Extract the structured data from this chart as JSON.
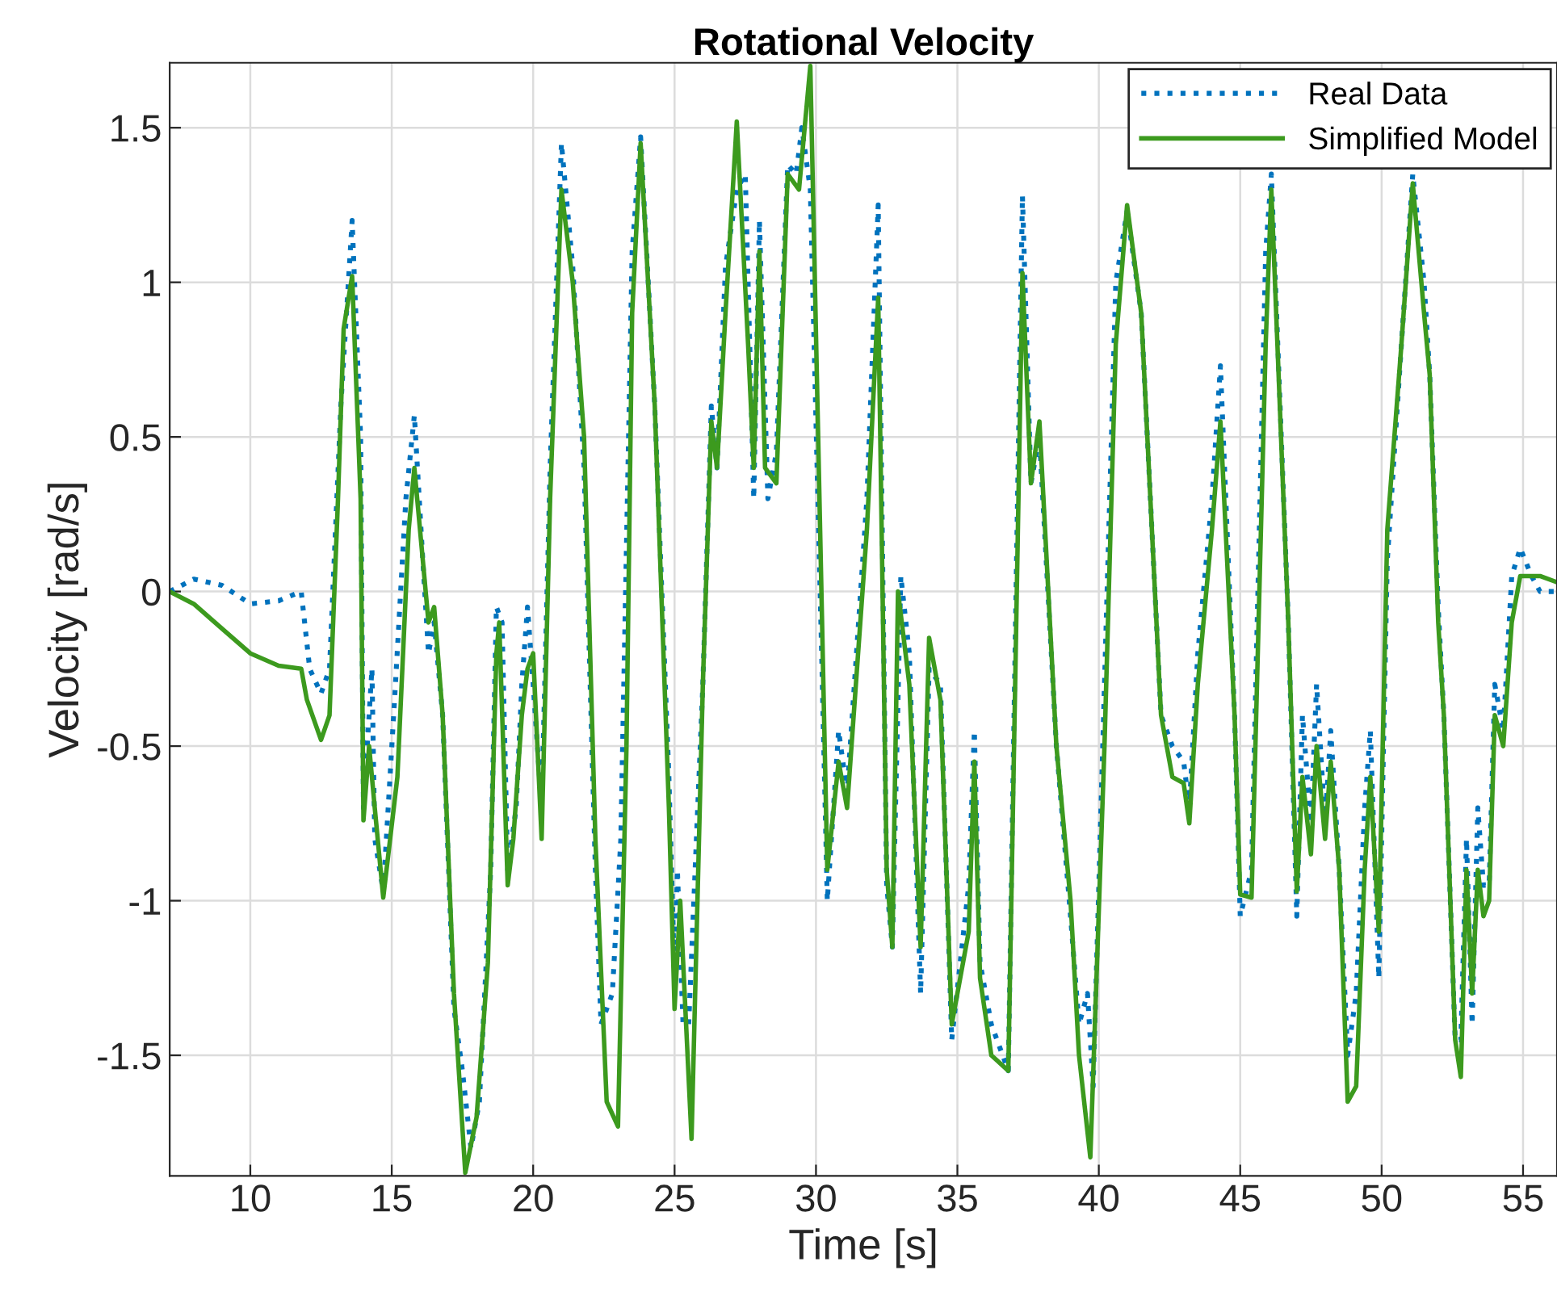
{
  "chart_data": {
    "type": "line",
    "title": "Rotational Velocity",
    "xlabel": "Time [s]",
    "ylabel": "Velocity [rad/s]",
    "xlim": [
      7.15,
      56.2
    ],
    "ylim": [
      -1.89,
      1.71
    ],
    "xticks": [
      10,
      15,
      20,
      25,
      30,
      35,
      40,
      45,
      50,
      55
    ],
    "yticks": [
      -1.5,
      -1,
      -0.5,
      0,
      0.5,
      1,
      1.5
    ],
    "grid": true,
    "legend": "top right",
    "series": [
      {
        "name": "Real Data",
        "color": "#0072bd",
        "line_style": "dotted",
        "x": [
          7.15,
          8,
          9,
          10,
          11,
          11.8,
          12.1,
          12.5,
          12.8,
          13.2,
          13.6,
          13.9,
          14.0,
          14.3,
          14.4,
          14.7,
          15.1,
          15.5,
          15.8,
          16.1,
          16.3,
          16.5,
          16.8,
          17.2,
          17.5,
          17.8,
          18.1,
          18.5,
          18.7,
          18.9,
          19.1,
          19.4,
          19.6,
          19.8,
          20.0,
          20.3,
          20.6,
          21.0,
          21.4,
          21.8,
          22.2,
          22.4,
          22.8,
          23.1,
          23.5,
          23.8,
          24.3,
          24.8,
          25.0,
          25.1,
          25.3,
          25.5,
          26.0,
          26.3,
          26.5,
          26.8,
          27.2,
          27.5,
          27.8,
          28.0,
          28.3,
          28.6,
          29.0,
          29.3,
          29.5,
          29.8,
          30.2,
          30.4,
          30.8,
          31.1,
          31.8,
          32.2,
          32.5,
          32.7,
          33.0,
          33.3,
          33.7,
          34.0,
          34.4,
          34.8,
          35.4,
          35.6,
          35.8,
          36.2,
          36.8,
          37.3,
          37.6,
          37.9,
          38.5,
          39.0,
          39.3,
          39.6,
          39.8,
          40.2,
          40.6,
          41.0,
          41.5,
          42.2,
          42.6,
          43.0,
          43.2,
          43.5,
          44.0,
          44.3,
          44.8,
          45.0,
          45.4,
          45.9,
          46.1,
          46.7,
          47.0,
          47.2,
          47.5,
          47.7,
          48.0,
          48.2,
          48.5,
          48.8,
          49.1,
          49.4,
          49.6,
          49.9,
          50.2,
          50.7,
          51.1,
          51.5,
          51.7,
          52.0,
          52.2,
          52.6,
          52.8,
          53.0,
          53.2,
          53.4,
          53.6,
          53.8,
          54.0,
          54.3,
          54.6,
          54.9,
          55.3,
          55.6,
          56.2
        ],
        "values": [
          0,
          0.04,
          0.02,
          -0.04,
          -0.03,
          0.0,
          -0.25,
          -0.33,
          -0.25,
          0.6,
          1.2,
          0.5,
          -0.7,
          -0.25,
          -0.8,
          -0.97,
          -0.35,
          0.3,
          0.57,
          0.1,
          -0.2,
          -0.1,
          -0.4,
          -1.35,
          -1.55,
          -1.8,
          -1.65,
          -0.9,
          -0.05,
          -0.1,
          -0.9,
          -0.7,
          -0.3,
          -0.05,
          -0.3,
          -0.7,
          0.4,
          1.45,
          1.05,
          0.4,
          -0.9,
          -1.4,
          -1.3,
          -0.8,
          1.1,
          1.47,
          0.6,
          -0.6,
          -1.25,
          -0.9,
          -1.4,
          -1.4,
          -0.3,
          0.6,
          0.4,
          1.05,
          1.3,
          1.35,
          0.3,
          1.2,
          0.3,
          0.45,
          1.38,
          1.35,
          1.5,
          1.3,
          -0.2,
          -1.0,
          -0.45,
          -0.65,
          0.3,
          1.25,
          -0.95,
          -1.15,
          0.05,
          -0.2,
          -1.3,
          -0.25,
          -0.3,
          -1.45,
          -0.95,
          -0.45,
          -1.2,
          -1.4,
          -1.55,
          1.28,
          0.35,
          0.5,
          -0.5,
          -1.05,
          -1.4,
          -1.3,
          -1.6,
          -0.3,
          1.0,
          1.23,
          0.9,
          -0.4,
          -0.5,
          -0.55,
          -0.7,
          -0.2,
          0.3,
          0.73,
          -0.4,
          -1.05,
          -0.9,
          1.1,
          1.35,
          -0.1,
          -1.05,
          -0.4,
          -0.75,
          -0.3,
          -0.75,
          -0.45,
          -0.9,
          -1.5,
          -1.3,
          -0.7,
          -0.45,
          -1.25,
          0.1,
          0.8,
          1.35,
          1.0,
          0.7,
          -0.05,
          -0.4,
          -1.45,
          -1.45,
          -0.8,
          -1.4,
          -0.7,
          -0.95,
          -0.95,
          -0.3,
          -0.45,
          0.05,
          0.14,
          0.05,
          0.0,
          0.0
        ]
      },
      {
        "name": "Simplified Model",
        "color": "#3c9a1e",
        "line_style": "solid",
        "x": [
          7.15,
          8,
          9,
          10,
          11,
          11.8,
          12,
          12.5,
          12.8,
          13.1,
          13.3,
          13.6,
          13.9,
          14.0,
          14.2,
          14.4,
          14.7,
          15.2,
          15.6,
          15.8,
          16.1,
          16.3,
          16.5,
          16.8,
          17.2,
          17.6,
          18.0,
          18.4,
          18.7,
          18.8,
          19.1,
          19.3,
          19.6,
          19.8,
          20.0,
          20.3,
          20.6,
          21.0,
          21.4,
          21.8,
          22.2,
          22.6,
          23.0,
          23.3,
          23.5,
          23.8,
          24.3,
          24.8,
          25.0,
          25.2,
          25.6,
          26.0,
          26.3,
          26.5,
          26.8,
          27.2,
          27.6,
          27.8,
          28.0,
          28.2,
          28.6,
          29.0,
          29.4,
          29.8,
          30.4,
          30.8,
          31.1,
          31.8,
          32.2,
          32.5,
          32.7,
          32.9,
          33.3,
          33.7,
          34.0,
          34.4,
          34.8,
          35.4,
          35.6,
          35.8,
          36.2,
          36.8,
          37.3,
          37.6,
          37.9,
          38.5,
          39.0,
          39.3,
          39.7,
          40.2,
          40.6,
          41.0,
          41.5,
          42.2,
          42.6,
          43.0,
          43.2,
          43.5,
          44.0,
          44.3,
          44.8,
          45.0,
          45.4,
          45.9,
          46.1,
          46.7,
          47.0,
          47.2,
          47.5,
          47.7,
          48.0,
          48.2,
          48.5,
          48.8,
          49.1,
          49.4,
          49.6,
          49.9,
          50.2,
          50.7,
          51.1,
          51.5,
          51.7,
          52.0,
          52.2,
          52.6,
          52.8,
          53.0,
          53.2,
          53.4,
          53.6,
          53.8,
          54.0,
          54.3,
          54.6,
          54.9,
          55.3,
          55.6,
          56.2
        ],
        "values": [
          0,
          -0.04,
          -0.12,
          -0.2,
          -0.24,
          -0.25,
          -0.35,
          -0.48,
          -0.4,
          0.3,
          0.85,
          1.02,
          0.3,
          -0.74,
          -0.5,
          -0.7,
          -0.99,
          -0.6,
          0.2,
          0.4,
          0.1,
          -0.1,
          -0.05,
          -0.4,
          -1.3,
          -1.88,
          -1.7,
          -1.2,
          -0.2,
          -0.1,
          -0.95,
          -0.8,
          -0.4,
          -0.25,
          -0.2,
          -0.8,
          0.3,
          1.3,
          1.0,
          0.5,
          -0.8,
          -1.65,
          -1.73,
          -0.5,
          0.9,
          1.45,
          0.6,
          -0.7,
          -1.35,
          -1.0,
          -1.77,
          -0.3,
          0.55,
          0.4,
          0.9,
          1.52,
          0.8,
          0.4,
          1.1,
          0.4,
          0.35,
          1.35,
          1.3,
          1.7,
          -0.9,
          -0.55,
          -0.7,
          0.2,
          0.95,
          -0.9,
          -1.15,
          0.0,
          -0.3,
          -1.15,
          -0.15,
          -0.35,
          -1.4,
          -1.1,
          -0.55,
          -1.25,
          -1.5,
          -1.55,
          1.03,
          0.35,
          0.55,
          -0.5,
          -1.0,
          -1.5,
          -1.83,
          -0.5,
          0.8,
          1.25,
          0.9,
          -0.4,
          -0.6,
          -0.62,
          -0.75,
          -0.3,
          0.2,
          0.55,
          -0.4,
          -0.98,
          -0.99,
          0.8,
          1.3,
          -0.1,
          -0.97,
          -0.6,
          -0.85,
          -0.5,
          -0.8,
          -0.55,
          -0.9,
          -1.65,
          -1.6,
          -0.9,
          -0.6,
          -1.1,
          0.2,
          0.8,
          1.32,
          0.9,
          0.7,
          -0.1,
          -0.4,
          -1.45,
          -1.57,
          -0.9,
          -1.3,
          -0.9,
          -1.05,
          -1.0,
          -0.4,
          -0.5,
          -0.1,
          0.05,
          0.05,
          0.05,
          0.03
        ]
      }
    ]
  }
}
